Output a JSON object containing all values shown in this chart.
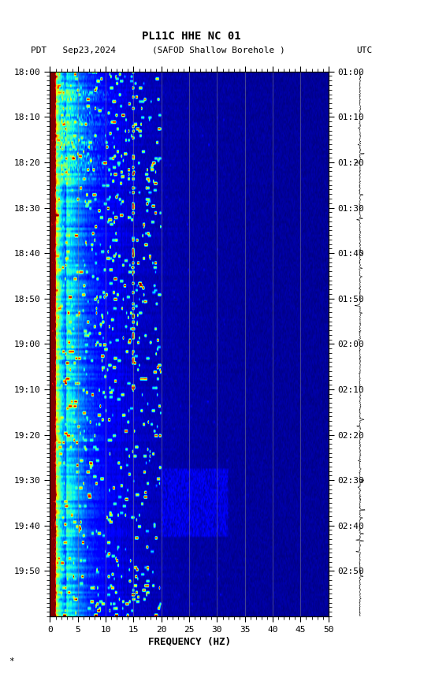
{
  "title_line1": "PL11C HHE NC 01",
  "title_line2_left": "PDT   Sep23,2024",
  "title_line2_mid": "(SAFOD Shallow Borehole )",
  "title_line2_right": "UTC",
  "xlabel": "FREQUENCY (HZ)",
  "freq_min": 0,
  "freq_max": 50,
  "freq_ticks": [
    0,
    5,
    10,
    15,
    20,
    25,
    30,
    35,
    40,
    45,
    50
  ],
  "time_left_labels": [
    "18:00",
    "18:10",
    "18:20",
    "18:30",
    "18:40",
    "18:50",
    "19:00",
    "19:10",
    "19:20",
    "19:30",
    "19:40",
    "19:50"
  ],
  "time_right_labels": [
    "01:00",
    "01:10",
    "01:20",
    "01:30",
    "01:40",
    "01:50",
    "02:00",
    "02:10",
    "02:20",
    "02:30",
    "02:40",
    "02:50"
  ],
  "n_time_steps": 240,
  "n_freq_steps": 500,
  "bg_color": "white",
  "fig_width": 5.52,
  "fig_height": 8.64,
  "colormap": "jet",
  "grid_freqs": [
    5,
    10,
    15,
    20,
    25,
    30,
    35,
    40,
    45,
    50
  ]
}
